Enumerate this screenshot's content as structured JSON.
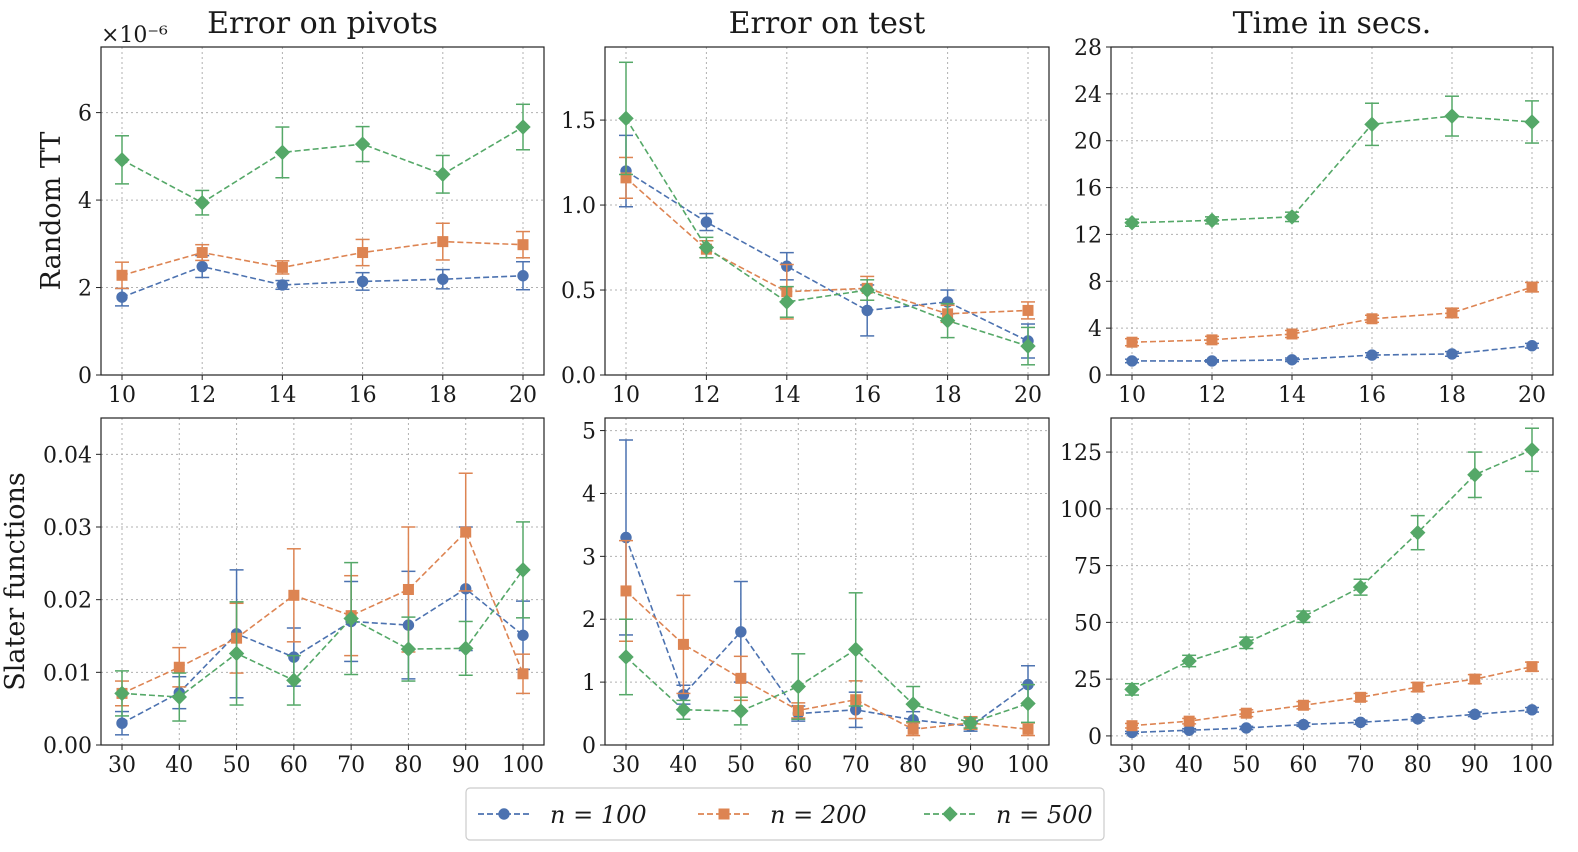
{
  "chart_data": [
    {
      "type": "line",
      "title": "Error on pivots",
      "ylabel": "Random TT",
      "xlabel": "",
      "multiplier": "×10⁻⁶",
      "x": [
        10,
        12,
        14,
        16,
        18,
        20
      ],
      "xticks": [
        "10",
        "12",
        "14",
        "16",
        "18",
        "20"
      ],
      "ylim": [
        0,
        7.5
      ],
      "yticks": [
        0,
        2,
        4,
        6
      ],
      "ytick_labels": [
        "0",
        "2",
        "4",
        "6"
      ],
      "series": [
        {
          "name": "n = 100",
          "values": [
            1.78,
            2.48,
            2.06,
            2.14,
            2.19,
            2.27
          ],
          "err": [
            0.2,
            0.25,
            0.1,
            0.2,
            0.22,
            0.32
          ]
        },
        {
          "name": "n = 200",
          "values": [
            2.28,
            2.8,
            2.46,
            2.8,
            3.05,
            2.98
          ],
          "err": [
            0.3,
            0.18,
            0.15,
            0.3,
            0.42,
            0.3
          ]
        },
        {
          "name": "n = 500",
          "values": [
            4.92,
            3.94,
            5.09,
            5.28,
            4.59,
            5.67
          ],
          "err": [
            0.55,
            0.28,
            0.58,
            0.4,
            0.43,
            0.52
          ]
        }
      ]
    },
    {
      "type": "line",
      "title": "Error on test",
      "ylabel": "",
      "xlabel": "",
      "x": [
        10,
        12,
        14,
        16,
        18,
        20
      ],
      "xticks": [
        "10",
        "12",
        "14",
        "16",
        "18",
        "20"
      ],
      "ylim": [
        0,
        1.93
      ],
      "yticks": [
        0,
        0.5,
        1.0,
        1.5
      ],
      "ytick_labels": [
        "0.0",
        "0.5",
        "1.0",
        "1.5"
      ],
      "series": [
        {
          "name": "n = 100",
          "values": [
            1.2,
            0.9,
            0.64,
            0.38,
            0.43,
            0.2
          ],
          "err": [
            0.21,
            0.05,
            0.08,
            0.15,
            0.07,
            0.1
          ]
        },
        {
          "name": "n = 200",
          "values": [
            1.16,
            0.74,
            0.49,
            0.51,
            0.36,
            0.38
          ],
          "err": [
            0.12,
            0.05,
            0.16,
            0.07,
            0.05,
            0.05
          ]
        },
        {
          "name": "n = 500",
          "values": [
            1.51,
            0.75,
            0.43,
            0.5,
            0.32,
            0.17
          ],
          "err": [
            0.33,
            0.06,
            0.09,
            0.06,
            0.1,
            0.11
          ]
        }
      ]
    },
    {
      "type": "line",
      "title": "Time in secs.",
      "ylabel": "",
      "xlabel": "",
      "x": [
        10,
        12,
        14,
        16,
        18,
        20
      ],
      "xticks": [
        "10",
        "12",
        "14",
        "16",
        "18",
        "20"
      ],
      "ylim": [
        0,
        28
      ],
      "yticks": [
        0,
        4,
        8,
        12,
        16,
        20,
        24,
        28
      ],
      "ytick_labels": [
        "0",
        "4",
        "8",
        "12",
        "16",
        "20",
        "24",
        "28"
      ],
      "series": [
        {
          "name": "n = 100",
          "values": [
            1.2,
            1.2,
            1.3,
            1.7,
            1.8,
            2.5
          ],
          "err": [
            0.15,
            0.1,
            0.15,
            0.2,
            0.2,
            0.2
          ]
        },
        {
          "name": "n = 200",
          "values": [
            2.8,
            3.0,
            3.5,
            4.8,
            5.3,
            7.5
          ],
          "err": [
            0.3,
            0.3,
            0.3,
            0.3,
            0.4,
            0.4
          ]
        },
        {
          "name": "n = 500",
          "values": [
            13.0,
            13.2,
            13.5,
            21.4,
            22.1,
            21.6
          ],
          "err": [
            0.3,
            0.3,
            0.4,
            1.8,
            1.7,
            1.8
          ]
        }
      ]
    },
    {
      "type": "line",
      "title": "",
      "ylabel": "Slater functions",
      "xlabel": "",
      "x": [
        30,
        40,
        50,
        60,
        70,
        80,
        90,
        100
      ],
      "xticks": [
        "30",
        "40",
        "50",
        "60",
        "70",
        "80",
        "90",
        "100"
      ],
      "ylim": [
        0,
        0.045
      ],
      "yticks": [
        0,
        0.01,
        0.02,
        0.03,
        0.04
      ],
      "ytick_labels": [
        "0.00",
        "0.01",
        "0.02",
        "0.03",
        "0.04"
      ],
      "series": [
        {
          "name": "n = 100",
          "values": [
            0.003,
            0.0072,
            0.0153,
            0.0121,
            0.017,
            0.0165,
            0.0215,
            0.0151
          ],
          "err": [
            0.0016,
            0.0022,
            0.0088,
            0.004,
            0.0055,
            0.0074,
            0.0085,
            0.0047
          ]
        },
        {
          "name": "n = 200",
          "values": [
            0.0071,
            0.0107,
            0.0147,
            0.0206,
            0.0178,
            0.0214,
            0.0293,
            0.0098
          ],
          "err": [
            0.0017,
            0.0027,
            0.0048,
            0.0064,
            0.0055,
            0.0086,
            0.0081,
            0.0027
          ]
        },
        {
          "name": "n = 500",
          "values": [
            0.0071,
            0.0066,
            0.0126,
            0.0089,
            0.0174,
            0.0132,
            0.0133,
            0.0241
          ],
          "err": [
            0.0031,
            0.0033,
            0.0071,
            0.0034,
            0.0077,
            0.0044,
            0.0037,
            0.0066
          ]
        }
      ]
    },
    {
      "type": "line",
      "title": "",
      "ylabel": "",
      "xlabel": "",
      "x": [
        30,
        40,
        50,
        60,
        70,
        80,
        90,
        100
      ],
      "xticks": [
        "30",
        "40",
        "50",
        "60",
        "70",
        "80",
        "90",
        "100"
      ],
      "ylim": [
        0,
        5.2
      ],
      "yticks": [
        0,
        1,
        2,
        3,
        4,
        5
      ],
      "ytick_labels": [
        "0",
        "1",
        "2",
        "3",
        "4",
        "5"
      ],
      "series": [
        {
          "name": "n = 100",
          "values": [
            3.3,
            0.8,
            1.8,
            0.5,
            0.56,
            0.4,
            0.3,
            0.96
          ],
          "err": [
            1.55,
            0.15,
            0.8,
            0.12,
            0.28,
            0.13,
            0.08,
            0.3
          ]
        },
        {
          "name": "n = 200",
          "values": [
            2.45,
            1.6,
            1.06,
            0.55,
            0.72,
            0.25,
            0.35,
            0.25
          ],
          "err": [
            0.8,
            0.78,
            0.35,
            0.12,
            0.3,
            0.1,
            0.1,
            0.1
          ]
        },
        {
          "name": "n = 500",
          "values": [
            1.4,
            0.56,
            0.54,
            0.93,
            1.52,
            0.65,
            0.35,
            0.66
          ],
          "err": [
            0.6,
            0.15,
            0.22,
            0.52,
            0.9,
            0.28,
            0.08,
            0.3
          ]
        }
      ]
    },
    {
      "type": "line",
      "title": "",
      "ylabel": "",
      "xlabel": "",
      "x": [
        30,
        40,
        50,
        60,
        70,
        80,
        90,
        100
      ],
      "xticks": [
        "30",
        "40",
        "50",
        "60",
        "70",
        "80",
        "90",
        "100"
      ],
      "ylim": [
        -4,
        140
      ],
      "yticks": [
        0,
        25,
        50,
        75,
        100,
        125
      ],
      "ytick_labels": [
        "0",
        "25",
        "50",
        "75",
        "100",
        "125"
      ],
      "series": [
        {
          "name": "n = 100",
          "values": [
            1.5,
            2.5,
            3.5,
            5.0,
            6.0,
            7.5,
            9.5,
            11.5
          ],
          "err": [
            0.5,
            0.7,
            0.7,
            0.8,
            0.9,
            0.9,
            1.0,
            1.0
          ]
        },
        {
          "name": "n = 200",
          "values": [
            4.5,
            6.5,
            10.0,
            13.5,
            17.0,
            21.5,
            25.0,
            30.5
          ],
          "err": [
            1.0,
            1.2,
            1.5,
            1.6,
            1.7,
            2.0,
            2.0,
            2.0
          ]
        },
        {
          "name": "n = 500",
          "values": [
            20.5,
            33.0,
            41.0,
            52.5,
            65.5,
            89.5,
            115.0,
            126.0
          ],
          "err": [
            2.5,
            2.5,
            2.5,
            2.5,
            3.5,
            7.5,
            10.0,
            9.5
          ]
        }
      ]
    }
  ],
  "legend": [
    {
      "label": "n = 100",
      "color": "#4c72b0",
      "marker": "circle"
    },
    {
      "label": "n = 200",
      "color": "#dd8452",
      "marker": "square"
    },
    {
      "label": "n = 500",
      "color": "#55a868",
      "marker": "diamond"
    }
  ]
}
